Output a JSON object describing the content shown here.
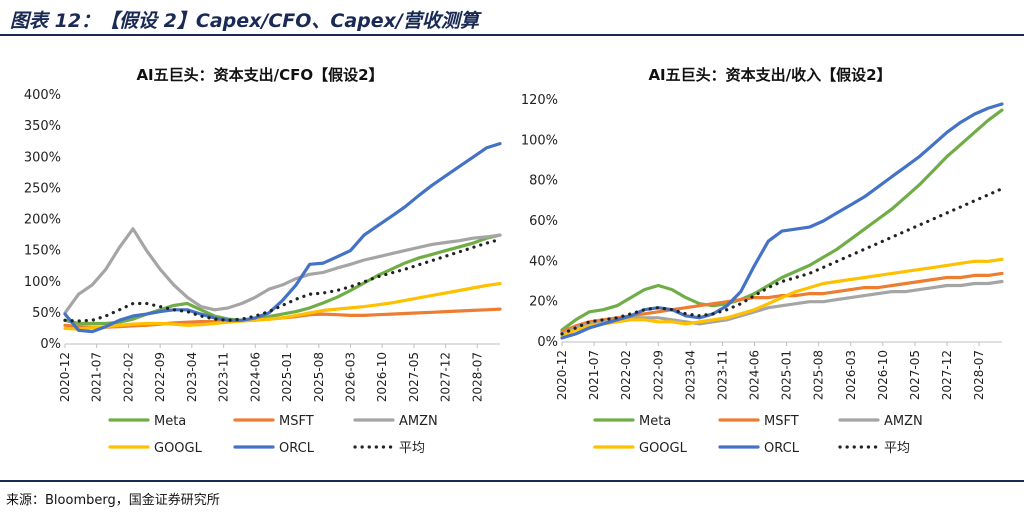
{
  "figure": {
    "title": "图表 12：【假设 2】Capex/CFO、Capex/营收测算",
    "source": "来源：Bloomberg，国金证券研究所"
  },
  "chart_data": [
    {
      "type": "line",
      "title": "AI五巨头：资本支出/CFO【假设2】",
      "y_unit": "%",
      "ylim": [
        0,
        400
      ],
      "yticks": [
        0,
        50,
        100,
        150,
        200,
        250,
        300,
        350,
        400
      ],
      "ytick_labels": [
        "0%",
        "50%",
        "100%",
        "150%",
        "200%",
        "250%",
        "300%",
        "350%",
        "400%"
      ],
      "xlim": [
        0,
        32
      ],
      "x_tick_positions": [
        0,
        2.33,
        4.67,
        7,
        9.33,
        11.67,
        14,
        16.33,
        18.67,
        21,
        23.33,
        25.67,
        28,
        30.33
      ],
      "x_tick_labels": [
        "2020-12",
        "2021-07",
        "2022-02",
        "2022-09",
        "2023-04",
        "2023-11",
        "2024-06",
        "2025-01",
        "2025-08",
        "2026-03",
        "2026-10",
        "2027-05",
        "2027-12",
        "2028-07"
      ],
      "x": [
        0,
        1,
        2,
        3,
        4,
        5,
        6,
        7,
        8,
        9,
        10,
        11,
        12,
        13,
        14,
        15,
        16,
        17,
        18,
        19,
        20,
        21,
        22,
        23,
        24,
        25,
        26,
        27,
        28,
        29,
        30,
        31,
        32
      ],
      "series": [
        {
          "name": "Meta",
          "color": "#70ad47",
          "style": "solid",
          "values": [
            38,
            33,
            33,
            33,
            35,
            40,
            48,
            55,
            62,
            65,
            55,
            45,
            40,
            38,
            40,
            44,
            48,
            52,
            58,
            66,
            75,
            86,
            98,
            110,
            120,
            130,
            138,
            144,
            150,
            156,
            162,
            170,
            175
          ]
        },
        {
          "name": "MSFT",
          "color": "#ed7d31",
          "style": "solid",
          "values": [
            30,
            28,
            27,
            27,
            28,
            29,
            30,
            32,
            34,
            35,
            36,
            36,
            37,
            38,
            39,
            40,
            42,
            44,
            47,
            48,
            47,
            46,
            46,
            47,
            48,
            49,
            50,
            51,
            52,
            53,
            54,
            55,
            56
          ]
        },
        {
          "name": "AMZN",
          "color": "#a5a5a5",
          "style": "solid",
          "values": [
            50,
            80,
            95,
            120,
            155,
            185,
            150,
            120,
            95,
            75,
            60,
            55,
            58,
            65,
            75,
            88,
            95,
            105,
            112,
            115,
            122,
            128,
            135,
            140,
            145,
            150,
            155,
            160,
            163,
            166,
            170,
            172,
            175
          ]
        },
        {
          "name": "GOOGL",
          "color": "#ffc000",
          "style": "solid",
          "values": [
            25,
            24,
            26,
            28,
            30,
            32,
            33,
            33,
            32,
            30,
            31,
            33,
            35,
            37,
            38,
            40,
            42,
            46,
            50,
            54,
            56,
            58,
            60,
            63,
            66,
            70,
            74,
            78,
            82,
            86,
            90,
            94,
            97
          ]
        },
        {
          "name": "ORCL",
          "color": "#4472c4",
          "style": "solid",
          "values": [
            48,
            22,
            20,
            28,
            38,
            45,
            48,
            52,
            55,
            55,
            48,
            42,
            38,
            38,
            42,
            50,
            70,
            95,
            128,
            130,
            140,
            150,
            175,
            190,
            205,
            220,
            238,
            255,
            270,
            285,
            300,
            315,
            322
          ]
        },
        {
          "name": "平均",
          "color": "#222222",
          "style": "dotted",
          "values": [
            38,
            37,
            38,
            45,
            55,
            65,
            65,
            60,
            55,
            52,
            45,
            40,
            38,
            40,
            45,
            52,
            62,
            72,
            80,
            82,
            86,
            92,
            100,
            108,
            114,
            120,
            127,
            134,
            141,
            148,
            155,
            162,
            168
          ]
        }
      ]
    },
    {
      "type": "line",
      "title": "AI五巨头：资本支出/收入【假设2】",
      "y_unit": "%",
      "ylim": [
        0,
        120
      ],
      "yticks": [
        0,
        20,
        40,
        60,
        80,
        100,
        120
      ],
      "ytick_labels": [
        "0%",
        "20%",
        "40%",
        "60%",
        "80%",
        "100%",
        "120%"
      ],
      "xlim": [
        0,
        32
      ],
      "x_tick_positions": [
        0,
        2.33,
        4.67,
        7,
        9.33,
        11.67,
        14,
        16.33,
        18.67,
        21,
        23.33,
        25.67,
        28,
        30.33
      ],
      "x_tick_labels": [
        "2020-12",
        "2021-07",
        "2022-02",
        "2022-09",
        "2023-04",
        "2023-11",
        "2024-06",
        "2025-01",
        "2025-08",
        "2026-03",
        "2026-10",
        "2027-05",
        "2027-12",
        "2028-07"
      ],
      "x": [
        0,
        1,
        2,
        3,
        4,
        5,
        6,
        7,
        8,
        9,
        10,
        11,
        12,
        13,
        14,
        15,
        16,
        17,
        18,
        19,
        20,
        21,
        22,
        23,
        24,
        25,
        26,
        27,
        28,
        29,
        30,
        31,
        32
      ],
      "series": [
        {
          "name": "Meta",
          "color": "#70ad47",
          "style": "solid",
          "values": [
            6,
            11,
            15,
            16,
            18,
            22,
            26,
            28,
            26,
            22,
            19,
            18,
            19,
            21,
            24,
            28,
            32,
            35,
            38,
            42,
            46,
            51,
            56,
            61,
            66,
            72,
            78,
            85,
            92,
            98,
            104,
            110,
            115
          ]
        },
        {
          "name": "MSFT",
          "color": "#ed7d31",
          "style": "solid",
          "values": [
            5,
            8,
            10,
            11,
            12,
            13,
            14,
            15,
            16,
            17,
            18,
            19,
            20,
            21,
            22,
            22,
            23,
            23,
            24,
            24,
            25,
            26,
            27,
            27,
            28,
            29,
            30,
            31,
            32,
            32,
            33,
            33,
            34
          ]
        },
        {
          "name": "AMZN",
          "color": "#a5a5a5",
          "style": "solid",
          "values": [
            4,
            7,
            9,
            10,
            11,
            12,
            12,
            12,
            11,
            10,
            9,
            10,
            11,
            13,
            15,
            17,
            18,
            19,
            20,
            20,
            21,
            22,
            23,
            24,
            25,
            25,
            26,
            27,
            28,
            28,
            29,
            29,
            30
          ]
        },
        {
          "name": "GOOGL",
          "color": "#ffc000",
          "style": "solid",
          "values": [
            3,
            6,
            8,
            9,
            10,
            11,
            11,
            10,
            10,
            9,
            10,
            11,
            12,
            14,
            16,
            19,
            22,
            25,
            27,
            29,
            30,
            31,
            32,
            33,
            34,
            35,
            36,
            37,
            38,
            39,
            40,
            40,
            41
          ]
        },
        {
          "name": "ORCL",
          "color": "#4472c4",
          "style": "solid",
          "values": [
            2,
            4,
            7,
            9,
            11,
            13,
            16,
            17,
            16,
            13,
            12,
            14,
            18,
            25,
            38,
            50,
            55,
            56,
            57,
            60,
            64,
            68,
            72,
            77,
            82,
            87,
            92,
            98,
            104,
            109,
            113,
            116,
            118
          ]
        },
        {
          "name": "平均",
          "color": "#222222",
          "style": "dotted",
          "values": [
            4,
            7,
            10,
            11,
            12,
            14,
            16,
            17,
            16,
            14,
            13,
            14,
            16,
            19,
            23,
            27,
            30,
            32,
            34,
            37,
            40,
            43,
            46,
            49,
            52,
            55,
            58,
            61,
            64,
            67,
            70,
            73,
            76
          ]
        }
      ]
    }
  ]
}
